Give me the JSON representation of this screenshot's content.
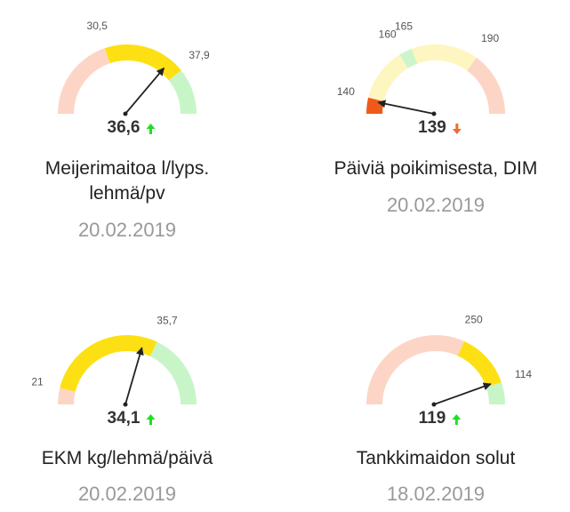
{
  "chart_data": [
    {
      "type": "gauge",
      "title": "Meijerimaitoa l/lyps. lehmä/pv",
      "date": "20.02.2019",
      "value": 36.6,
      "value_label": "36,6",
      "trend": "up",
      "trend_color": "#22dd22",
      "range": [
        23,
        42
      ],
      "thresholds": [
        {
          "value": 30.5,
          "label": "30,5"
        },
        {
          "value": 37.9,
          "label": "37,9"
        }
      ],
      "colors": [
        "#fdd5c6",
        "#fde014",
        "#c8f5c8"
      ]
    },
    {
      "type": "gauge",
      "title": "Päiviä poikimisesta, DIM",
      "date": "20.02.2019",
      "value": 139,
      "trend": "down",
      "trend_color": "#f26b2c",
      "range": [
        134,
        214
      ],
      "thresholds": [
        140,
        160,
        165,
        190
      ],
      "colors": [
        "#ef5a1a",
        "#fdf6c0",
        "#ccf5cc",
        "#fdf6c0",
        "#fdd5c6"
      ]
    },
    {
      "type": "gauge",
      "title": "EKM kg/lehmä/päivä",
      "date": "20.02.2019",
      "value": 34.1,
      "value_label": "34,1",
      "trend": "up",
      "trend_color": "#22dd22",
      "range": [
        19,
        45
      ],
      "thresholds": [
        21,
        {
          "value": 35.7,
          "label": "35,7"
        }
      ],
      "colors": [
        "#fdd5c6",
        "#fde014",
        "#c8f5c8"
      ]
    },
    {
      "type": "gauge",
      "title": "Tankkimaidon solut",
      "date": "18.02.2019",
      "value": 119,
      "trend": "up",
      "trend_color": "#22dd22",
      "range": [
        580,
        60
      ],
      "thresholds": [
        250,
        114
      ],
      "colors": [
        "#fdd5c6",
        "#fde014",
        "#c8f5c8"
      ]
    }
  ]
}
